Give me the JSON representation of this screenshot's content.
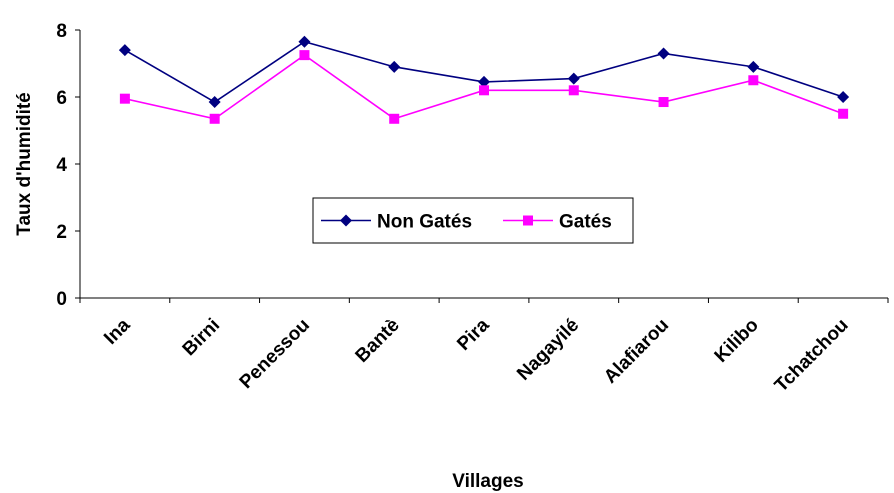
{
  "chart_data": {
    "type": "line",
    "title": "",
    "xlabel": "Villages",
    "ylabel": "Taux d'humidité",
    "categories": [
      "Ina",
      "Birni",
      "Penessou",
      "Bantè",
      "Pira",
      "Nagayilé",
      "Alafiarou",
      "Kilibo",
      "Tchatchou"
    ],
    "series": [
      {
        "name": "Non Gatés",
        "color": "#000080",
        "marker": "diamond",
        "values": [
          7.4,
          5.85,
          7.65,
          6.9,
          6.45,
          6.55,
          7.3,
          6.9,
          6.0
        ]
      },
      {
        "name": "Gatés",
        "color": "#FF00FF",
        "marker": "square",
        "values": [
          5.95,
          5.35,
          7.25,
          5.35,
          6.2,
          6.2,
          5.85,
          6.5,
          5.5
        ]
      }
    ],
    "ylim": [
      0,
      8
    ],
    "yticks": [
      "0",
      "2",
      "4",
      "6",
      "8"
    ],
    "grid": false,
    "legend_position": "center"
  }
}
